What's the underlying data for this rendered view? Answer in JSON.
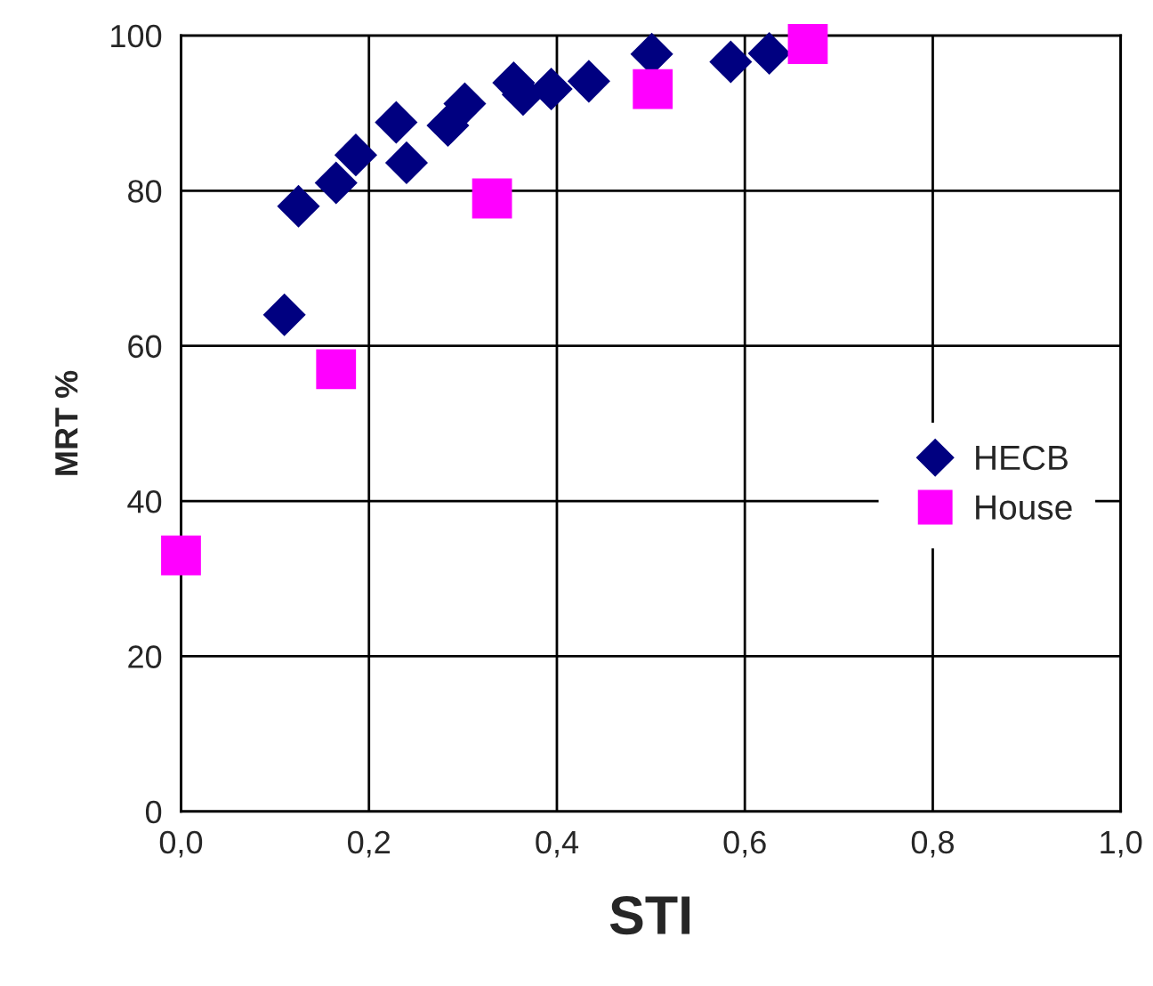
{
  "chart_data": {
    "type": "scatter",
    "xlabel": "STI",
    "ylabel": "MRT %",
    "series": [
      {
        "name": "HECB",
        "color": "#000080",
        "marker": "diamond",
        "x": [
          0.11,
          0.125,
          0.165,
          0.186,
          0.229,
          0.24,
          0.284,
          0.302,
          0.354,
          0.364,
          0.394,
          0.434,
          0.501,
          0.585,
          0.626
        ],
        "values": [
          64,
          78,
          81,
          84.6,
          88.8,
          83.6,
          88.4,
          91.2,
          93.9,
          92.4,
          93.1,
          94.1,
          97.6,
          96.6,
          97.7
        ]
      },
      {
        "name": "House",
        "color": "#ff00ff",
        "marker": "square",
        "x": [
          0.0,
          0.165,
          0.331,
          0.502,
          0.667
        ],
        "values": [
          33,
          57,
          79,
          93.1,
          98.9
        ]
      }
    ],
    "xlim": [
      0,
      1
    ],
    "xticks": [
      {
        "value": 0,
        "label": "0,0"
      },
      {
        "value": 0.2,
        "label": "0,2"
      },
      {
        "value": 0.4,
        "label": "0,4"
      },
      {
        "value": 0.6,
        "label": "0,6"
      },
      {
        "value": 0.8,
        "label": "0,8"
      },
      {
        "value": 1,
        "label": "1,0"
      }
    ],
    "ylim": [
      0,
      100
    ],
    "yticks": [
      0,
      20,
      40,
      60,
      80,
      100
    ],
    "grid": true,
    "legend": "right"
  }
}
